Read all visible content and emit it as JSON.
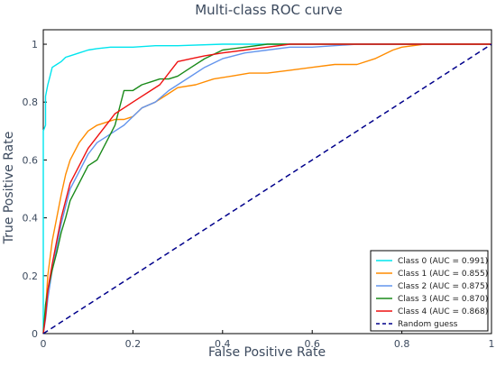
{
  "chart_data": {
    "type": "line",
    "title": "Multi-class ROC curve",
    "xlabel": "False Positive Rate",
    "ylabel": "True Positive Rate",
    "xlim": [
      0,
      1
    ],
    "ylim": [
      0,
      1.05
    ],
    "xticks": [
      0,
      0.2,
      0.4,
      0.6,
      0.8,
      1
    ],
    "xtick_labels": [
      "0",
      "0.2",
      "0.4",
      "0.6",
      "0.8",
      "1"
    ],
    "yticks": [
      0,
      0.2,
      0.4,
      0.6,
      0.8,
      1
    ],
    "ytick_labels": [
      "0",
      "0.2",
      "0.4",
      "0.6",
      "0.8",
      "1"
    ],
    "grid": false,
    "legend_position": "bottom-right",
    "series": [
      {
        "name": "Class 0 (AUC = 0.991)",
        "color": "#00e5ee",
        "x": [
          0,
          0,
          0.005,
          0.005,
          0.01,
          0.015,
          0.02,
          0.03,
          0.04,
          0.05,
          0.06,
          0.08,
          0.1,
          0.12,
          0.15,
          0.2,
          0.25,
          0.3,
          0.4,
          0.5,
          0.8,
          1.0
        ],
        "y": [
          0,
          0.7,
          0.72,
          0.82,
          0.86,
          0.89,
          0.92,
          0.93,
          0.94,
          0.955,
          0.96,
          0.97,
          0.98,
          0.985,
          0.99,
          0.99,
          0.995,
          0.995,
          1.0,
          1.0,
          1.0,
          1.0
        ]
      },
      {
        "name": "Class 1 (AUC = 0.855)",
        "color": "#ff8c00",
        "x": [
          0,
          0.005,
          0.01,
          0.02,
          0.03,
          0.04,
          0.05,
          0.06,
          0.07,
          0.08,
          0.1,
          0.12,
          0.14,
          0.16,
          0.18,
          0.2,
          0.22,
          0.25,
          0.28,
          0.3,
          0.34,
          0.38,
          0.42,
          0.46,
          0.5,
          0.55,
          0.6,
          0.65,
          0.7,
          0.74,
          0.78,
          0.8,
          0.85,
          1.0
        ],
        "y": [
          0,
          0.08,
          0.2,
          0.32,
          0.4,
          0.48,
          0.55,
          0.6,
          0.63,
          0.66,
          0.7,
          0.72,
          0.73,
          0.74,
          0.74,
          0.75,
          0.78,
          0.8,
          0.83,
          0.85,
          0.86,
          0.88,
          0.89,
          0.9,
          0.9,
          0.91,
          0.92,
          0.93,
          0.93,
          0.95,
          0.98,
          0.99,
          1.0,
          1.0
        ]
      },
      {
        "name": "Class 2 (AUC = 0.875)",
        "color": "#6495ed",
        "x": [
          0,
          0.005,
          0.01,
          0.02,
          0.03,
          0.04,
          0.05,
          0.06,
          0.08,
          0.1,
          0.12,
          0.14,
          0.16,
          0.18,
          0.2,
          0.22,
          0.25,
          0.28,
          0.3,
          0.33,
          0.36,
          0.4,
          0.45,
          0.5,
          0.55,
          0.6,
          0.7,
          0.8,
          1.0
        ],
        "y": [
          0,
          0.05,
          0.12,
          0.22,
          0.3,
          0.38,
          0.44,
          0.5,
          0.56,
          0.62,
          0.66,
          0.68,
          0.7,
          0.72,
          0.75,
          0.78,
          0.8,
          0.84,
          0.86,
          0.89,
          0.92,
          0.95,
          0.97,
          0.98,
          0.99,
          0.99,
          1.0,
          1.0,
          1.0
        ]
      },
      {
        "name": "Class 3 (AUC = 0.870)",
        "color": "#1a8a1a",
        "x": [
          0,
          0.005,
          0.01,
          0.02,
          0.03,
          0.04,
          0.05,
          0.06,
          0.08,
          0.1,
          0.12,
          0.14,
          0.16,
          0.18,
          0.2,
          0.22,
          0.24,
          0.26,
          0.28,
          0.3,
          0.33,
          0.36,
          0.4,
          0.45,
          0.5,
          0.6,
          0.8,
          1.0
        ],
        "y": [
          0,
          0.1,
          0.15,
          0.22,
          0.28,
          0.35,
          0.4,
          0.46,
          0.52,
          0.58,
          0.6,
          0.66,
          0.72,
          0.84,
          0.84,
          0.86,
          0.87,
          0.88,
          0.88,
          0.89,
          0.92,
          0.95,
          0.98,
          0.99,
          1.0,
          1.0,
          1.0,
          1.0
        ]
      },
      {
        "name": "Class 4 (AUC = 0.868)",
        "color": "#ee1111",
        "x": [
          0,
          0.005,
          0.01,
          0.02,
          0.03,
          0.04,
          0.05,
          0.06,
          0.08,
          0.1,
          0.12,
          0.14,
          0.16,
          0.18,
          0.2,
          0.22,
          0.24,
          0.26,
          0.28,
          0.3,
          0.33,
          0.36,
          0.4,
          0.45,
          0.5,
          0.55,
          0.6,
          0.8,
          1.0
        ],
        "y": [
          0,
          0.06,
          0.15,
          0.24,
          0.32,
          0.4,
          0.46,
          0.52,
          0.58,
          0.64,
          0.68,
          0.72,
          0.76,
          0.78,
          0.8,
          0.82,
          0.84,
          0.86,
          0.9,
          0.94,
          0.95,
          0.96,
          0.97,
          0.98,
          0.99,
          1.0,
          1.0,
          1.0,
          1.0
        ]
      }
    ],
    "reference_line": {
      "name": "Random guess",
      "color": "#00008b",
      "style": "dashed",
      "x": [
        0,
        1
      ],
      "y": [
        0,
        1
      ]
    }
  }
}
